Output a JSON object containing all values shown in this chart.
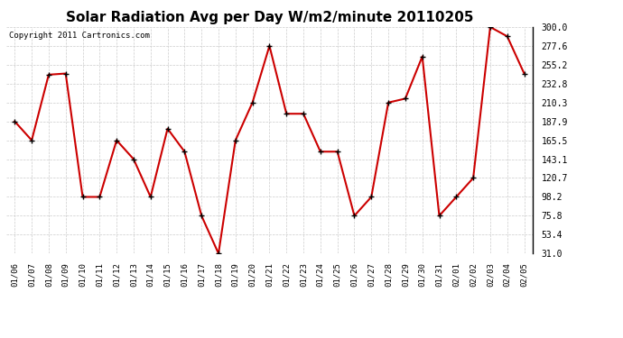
{
  "title": "Solar Radiation Avg per Day W/m2/minute 20110205",
  "copyright": "Copyright 2011 Cartronics.com",
  "dates": [
    "01/06",
    "01/07",
    "01/08",
    "01/09",
    "01/10",
    "01/11",
    "01/12",
    "01/13",
    "01/14",
    "01/15",
    "01/16",
    "01/17",
    "01/18",
    "01/19",
    "01/20",
    "01/21",
    "01/22",
    "01/23",
    "01/24",
    "01/25",
    "01/26",
    "01/27",
    "01/28",
    "01/29",
    "01/30",
    "01/31",
    "02/01",
    "02/02",
    "02/03",
    "02/04",
    "02/05"
  ],
  "values": [
    187.9,
    165.5,
    243.4,
    244.8,
    98.2,
    98.2,
    165.5,
    143.1,
    98.2,
    179.3,
    152.0,
    75.8,
    31.0,
    165.5,
    210.3,
    277.6,
    197.0,
    197.0,
    152.0,
    152.0,
    75.8,
    98.2,
    210.3,
    215.0,
    265.0,
    75.8,
    98.2,
    120.7,
    300.0,
    289.0,
    244.8
  ],
  "line_color": "#cc0000",
  "marker": "+",
  "marker_size": 5,
  "background_color": "#ffffff",
  "plot_bg_color": "#ffffff",
  "grid_color": "#cccccc",
  "ymin": 31.0,
  "ymax": 300.0,
  "yticks": [
    31.0,
    53.4,
    75.8,
    98.2,
    120.7,
    143.1,
    165.5,
    187.9,
    210.3,
    232.8,
    255.2,
    277.6,
    300.0
  ],
  "title_fontsize": 11,
  "copyright_fontsize": 6.5
}
